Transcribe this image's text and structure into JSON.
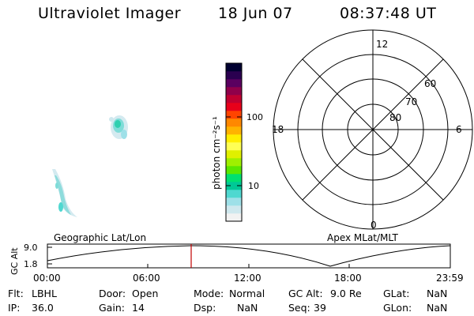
{
  "header": {
    "instrument": "Ultraviolet Imager",
    "date": "18 Jun 07",
    "time": "08:37:48 UT"
  },
  "colorbar": {
    "unit_label": "photon cm⁻²s⁻¹",
    "ticks": [
      "100",
      "10"
    ],
    "colors": [
      "#f2f2f2",
      "#cfe8ee",
      "#9ee0e8",
      "#4fd8d0",
      "#00c896",
      "#00e070",
      "#5ae800",
      "#9ff000",
      "#e0f000",
      "#ffff55",
      "#ffee00",
      "#ffb300",
      "#ff8800",
      "#ff4400",
      "#e8001a",
      "#c00030",
      "#90004a",
      "#5a0060",
      "#2a0050",
      "#000030"
    ]
  },
  "polar_plot": {
    "mlt_labels": [
      "12",
      "18",
      "6",
      "0"
    ],
    "lat_labels": [
      "60",
      "70",
      "80"
    ]
  },
  "projection_labels": {
    "left": "Geographic Lat/Lon",
    "right": "Apex MLat/MLT"
  },
  "altitude_strip": {
    "axis_label": "GC Alt",
    "y_ticks": [
      "9.0",
      "1.8"
    ],
    "time_ticks": [
      "00:00",
      "06:00",
      "12:00",
      "18:00",
      "23:59"
    ]
  },
  "info_rows": [
    [
      {
        "label": "Flt:",
        "value": "LBHL"
      },
      {
        "label": "Door:",
        "value": "Open"
      },
      {
        "label": "Mode:",
        "value": "Normal"
      },
      {
        "label": "GC Alt:",
        "value": "9.0 Re"
      },
      {
        "label": "GLat:",
        "value": "NaN"
      }
    ],
    [
      {
        "label": "IP:",
        "value": "36.0"
      },
      {
        "label": "Gain:",
        "value": "14"
      },
      {
        "label": "Dsp:",
        "value": "NaN"
      },
      {
        "label": "Seq:",
        "value": "39"
      },
      {
        "label": "GLon:",
        "value": "NaN"
      }
    ]
  ]
}
